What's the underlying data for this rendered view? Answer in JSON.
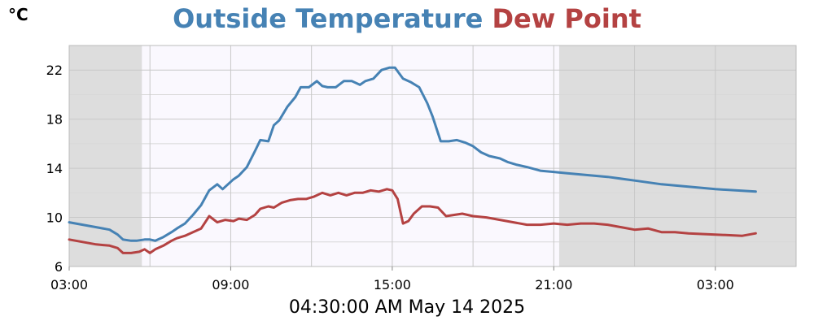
{
  "header": {
    "unit": "°C"
  },
  "chart_data": {
    "type": "line",
    "title": "Outside Temperature Dew Point",
    "title_parts": [
      "Outside Temperature",
      "Dew Point"
    ],
    "xlabel": "04:30:00 AM May 14 2025",
    "ylabel": "°C",
    "ylim": [
      6,
      24
    ],
    "xlim": [
      0,
      27
    ],
    "yticks": [
      6,
      10,
      14,
      18,
      22
    ],
    "xticks": [
      {
        "x": 0,
        "label": "03:00"
      },
      {
        "x": 6,
        "label": "09:00"
      },
      {
        "x": 12,
        "label": "15:00"
      },
      {
        "x": 18,
        "label": "21:00"
      },
      {
        "x": 24,
        "label": "03:00"
      }
    ],
    "grid": true,
    "night_bands": [
      [
        0,
        2.7
      ],
      [
        18.2,
        27
      ]
    ],
    "series": [
      {
        "name": "Outside Temperature",
        "color": "#4682b4",
        "x": [
          0,
          0.5,
          1,
          1.5,
          1.8,
          2,
          2.3,
          2.5,
          2.8,
          3,
          3.2,
          3.5,
          3.8,
          4,
          4.3,
          4.6,
          4.9,
          5.2,
          5.5,
          5.7,
          5.9,
          6.1,
          6.3,
          6.6,
          6.9,
          7.1,
          7.4,
          7.6,
          7.8,
          8.1,
          8.4,
          8.6,
          8.9,
          9.2,
          9.4,
          9.6,
          9.9,
          10.2,
          10.5,
          10.8,
          11,
          11.3,
          11.6,
          11.9,
          12.1,
          12.4,
          12.7,
          13,
          13.3,
          13.5,
          13.8,
          14.1,
          14.4,
          14.7,
          15,
          15.3,
          15.6,
          16,
          16.3,
          16.6,
          17,
          17.5,
          18,
          18.5,
          19,
          19.5,
          20,
          21,
          22,
          23,
          24,
          25.5
        ],
        "values": [
          9.6,
          9.4,
          9.2,
          9.0,
          8.6,
          8.2,
          8.1,
          8.1,
          8.2,
          8.2,
          8.1,
          8.4,
          8.8,
          9.1,
          9.5,
          10.2,
          11.0,
          12.2,
          12.7,
          12.3,
          12.7,
          13.1,
          13.4,
          14.1,
          15.4,
          16.3,
          16.2,
          17.5,
          17.9,
          19.0,
          19.8,
          20.6,
          20.6,
          21.1,
          20.7,
          20.6,
          20.6,
          21.1,
          21.1,
          20.8,
          21.1,
          21.3,
          22.0,
          22.2,
          22.2,
          21.3,
          21.0,
          20.6,
          19.3,
          18.2,
          16.2,
          16.2,
          16.3,
          16.1,
          15.8,
          15.3,
          15.0,
          14.8,
          14.5,
          14.3,
          14.1,
          13.8,
          13.7,
          13.6,
          13.5,
          13.4,
          13.3,
          13.0,
          12.7,
          12.5,
          12.3,
          12.1
        ]
      },
      {
        "name": "Dew Point",
        "color": "#b44242",
        "x": [
          0,
          0.5,
          1,
          1.5,
          1.8,
          2,
          2.3,
          2.6,
          2.8,
          3,
          3.2,
          3.5,
          3.8,
          4,
          4.3,
          4.6,
          4.9,
          5.2,
          5.5,
          5.8,
          6.1,
          6.3,
          6.6,
          6.9,
          7.1,
          7.4,
          7.6,
          7.9,
          8.2,
          8.5,
          8.8,
          9.1,
          9.4,
          9.7,
          10,
          10.3,
          10.6,
          10.9,
          11.2,
          11.5,
          11.8,
          12,
          12.2,
          12.4,
          12.6,
          12.8,
          13.1,
          13.4,
          13.7,
          14,
          14.3,
          14.6,
          15,
          15.5,
          16,
          16.5,
          17,
          17.5,
          18,
          18.5,
          19,
          19.5,
          20,
          20.5,
          21,
          21.5,
          22,
          22.5,
          23,
          24,
          25,
          25.5
        ],
        "values": [
          8.2,
          8.0,
          7.8,
          7.7,
          7.5,
          7.1,
          7.1,
          7.2,
          7.4,
          7.1,
          7.4,
          7.7,
          8.1,
          8.3,
          8.5,
          8.8,
          9.1,
          10.1,
          9.6,
          9.8,
          9.7,
          9.9,
          9.8,
          10.2,
          10.7,
          10.9,
          10.8,
          11.2,
          11.4,
          11.5,
          11.5,
          11.7,
          12.0,
          11.8,
          12.0,
          11.8,
          12.0,
          12.0,
          12.2,
          12.1,
          12.3,
          12.2,
          11.5,
          9.5,
          9.7,
          10.3,
          10.9,
          10.9,
          10.8,
          10.1,
          10.2,
          10.3,
          10.1,
          10.0,
          9.8,
          9.6,
          9.4,
          9.4,
          9.5,
          9.4,
          9.5,
          9.5,
          9.4,
          9.2,
          9.0,
          9.1,
          8.8,
          8.8,
          8.7,
          8.6,
          8.5,
          8.7
        ]
      }
    ]
  }
}
